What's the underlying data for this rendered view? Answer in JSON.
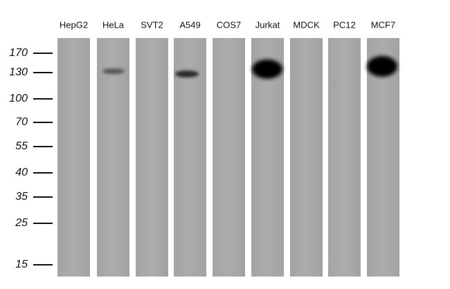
{
  "lanes": [
    "HepG2",
    "HeLa",
    "SVT2",
    "A549",
    "COS7",
    "Jurkat",
    "MDCK",
    "PC12",
    "MCF7"
  ],
  "markers": [
    "170",
    "130",
    "100",
    "70",
    "55",
    "40",
    "35",
    "25",
    "15"
  ]
}
